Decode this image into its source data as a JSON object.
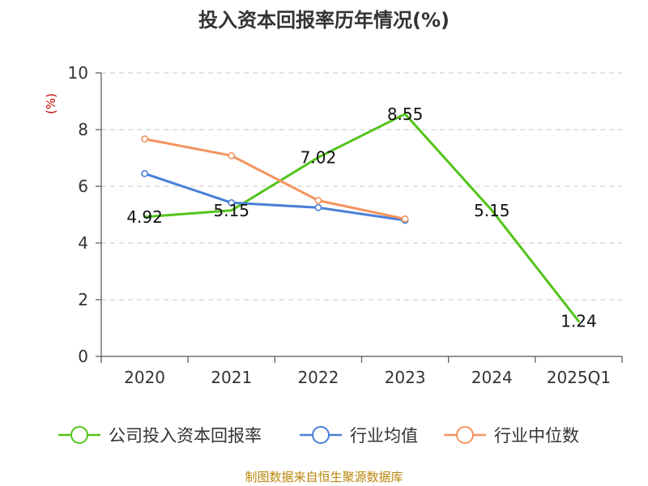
{
  "title": "投入资本回报率历年情况(%)",
  "unit_label": "(%)",
  "source": "制图数据来自恒生聚源数据库",
  "chart_data": {
    "type": "line",
    "title": "投入资本回报率历年情况(%)",
    "xlabel": "",
    "ylabel": "(%)",
    "categories": [
      "2020",
      "2021",
      "2022",
      "2023",
      "2024",
      "2025Q1"
    ],
    "ylim": [
      0,
      10
    ],
    "yticks": [
      0,
      2,
      4,
      6,
      8,
      10
    ],
    "grid": true,
    "legend_position": "bottom",
    "series": [
      {
        "name": "公司投入资本回报率",
        "color": "#52c41a",
        "values": [
          4.92,
          5.15,
          7.02,
          8.55,
          5.15,
          1.24
        ],
        "labels": [
          "4.92",
          "5.15",
          "7.02",
          "8.55",
          "5.15",
          "1.24"
        ]
      },
      {
        "name": "行业均值",
        "color": "#4a7fd6",
        "values": [
          6.45,
          5.42,
          5.25,
          4.8,
          null,
          null
        ]
      },
      {
        "name": "行业中位数",
        "color": "#f5935e",
        "values": [
          7.67,
          7.08,
          5.5,
          4.85,
          null,
          null
        ]
      }
    ]
  }
}
